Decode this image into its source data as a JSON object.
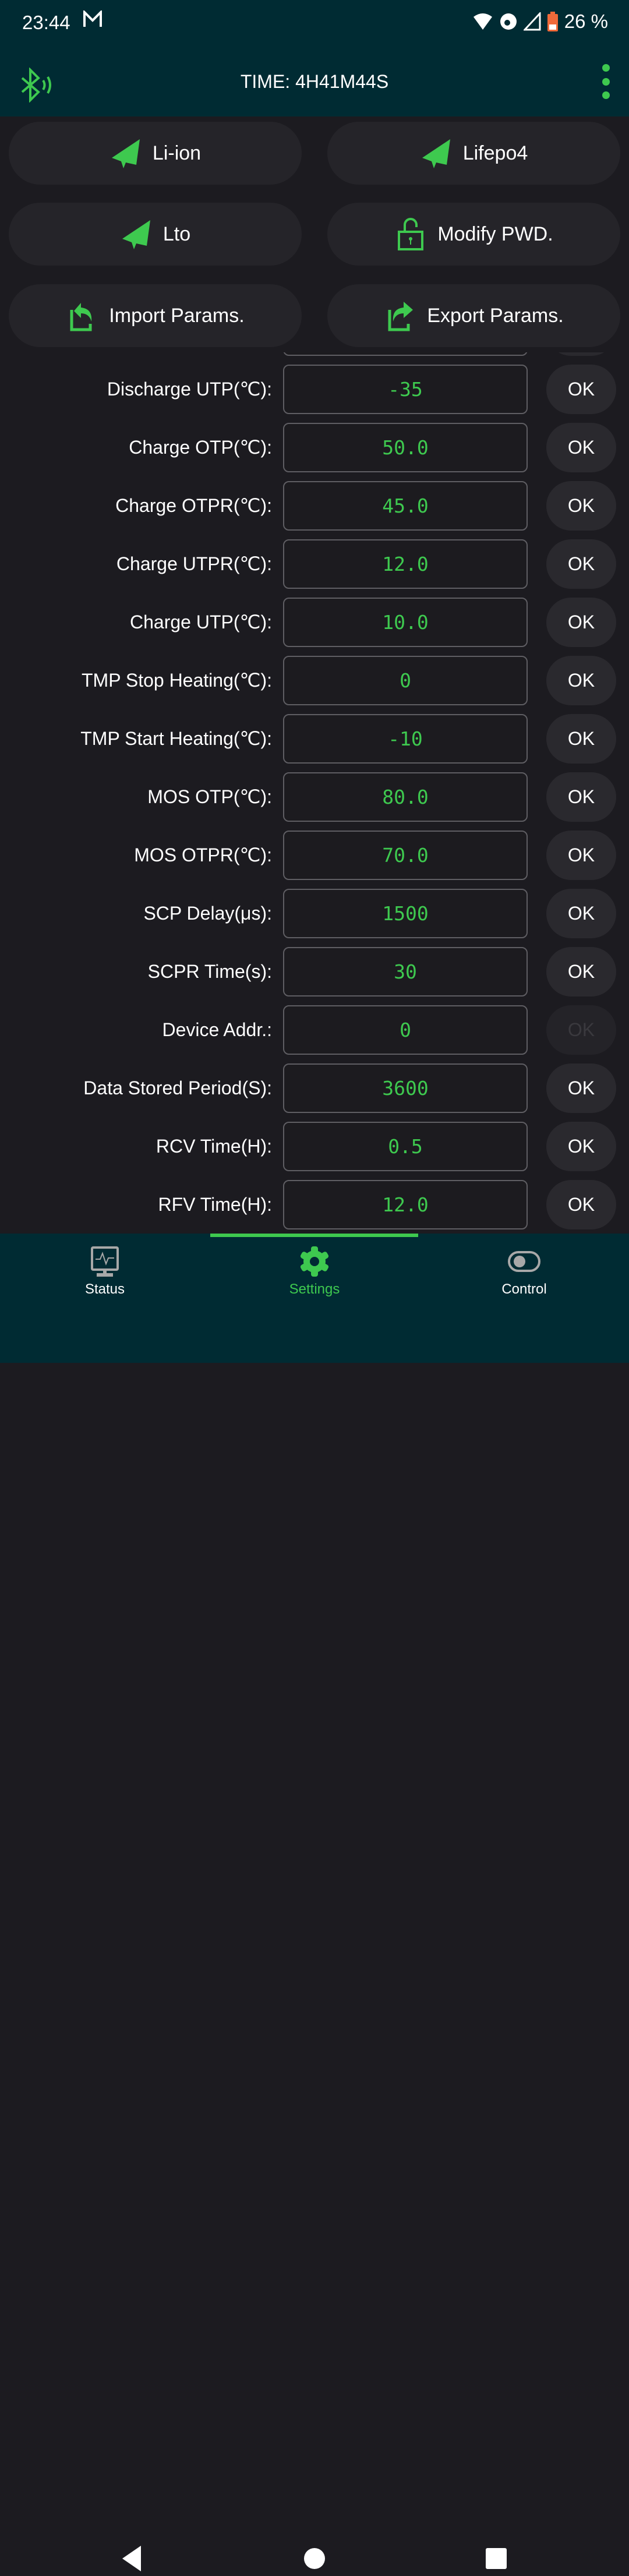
{
  "status_bar": {
    "time": "23:44",
    "notification_icon": "gmail-icon",
    "battery": "26 %",
    "icons": [
      "wifi-icon",
      "hotspot-icon",
      "signal-icon",
      "battery-icon"
    ]
  },
  "app_bar": {
    "title": "TIME: 4H41M44S",
    "left_icon": "bluetooth-connected-icon",
    "right_icon": "more-vert-icon"
  },
  "colors": {
    "accent": "#3ec94f",
    "header_bg": "#002b33",
    "page_bg": "#1c1b20",
    "button_bg": "#252429"
  },
  "actions": [
    {
      "label": "Li-ion",
      "icon": "send-icon"
    },
    {
      "label": "Lifepo4",
      "icon": "send-icon"
    },
    {
      "label": "Lto",
      "icon": "send-icon"
    },
    {
      "label": "Modify PWD.",
      "icon": "unlock-icon"
    },
    {
      "label": "Import Params.",
      "icon": "import-icon"
    },
    {
      "label": "Export Params.",
      "icon": "export-icon"
    }
  ],
  "params": [
    {
      "label": "",
      "value": "",
      "ok": "OK",
      "enabled": true
    },
    {
      "label": "Discharge UTP(℃):",
      "value": "-35",
      "ok": "OK",
      "enabled": true
    },
    {
      "label": "Charge OTP(℃):",
      "value": "50.0",
      "ok": "OK",
      "enabled": true
    },
    {
      "label": "Charge OTPR(℃):",
      "value": "45.0",
      "ok": "OK",
      "enabled": true
    },
    {
      "label": "Charge UTPR(℃):",
      "value": "12.0",
      "ok": "OK",
      "enabled": true
    },
    {
      "label": "Charge UTP(℃):",
      "value": "10.0",
      "ok": "OK",
      "enabled": true
    },
    {
      "label": "TMP Stop Heating(℃):",
      "value": "0",
      "ok": "OK",
      "enabled": true
    },
    {
      "label": "TMP Start Heating(℃):",
      "value": "-10",
      "ok": "OK",
      "enabled": true
    },
    {
      "label": "MOS OTP(℃):",
      "value": "80.0",
      "ok": "OK",
      "enabled": true
    },
    {
      "label": "MOS OTPR(℃):",
      "value": "70.0",
      "ok": "OK",
      "enabled": true
    },
    {
      "label": "SCP Delay(μs):",
      "value": "1500",
      "ok": "OK",
      "enabled": true
    },
    {
      "label": "SCPR Time(s):",
      "value": "30",
      "ok": "OK",
      "enabled": true
    },
    {
      "label": "Device Addr.:",
      "value": "0",
      "ok": "OK",
      "enabled": false
    },
    {
      "label": "Data Stored Period(S):",
      "value": "3600",
      "ok": "OK",
      "enabled": true
    },
    {
      "label": "RCV Time(H):",
      "value": "0.5",
      "ok": "OK",
      "enabled": true
    },
    {
      "label": "RFV Time(H):",
      "value": "12.0",
      "ok": "OK",
      "enabled": true
    }
  ],
  "bottom_nav": [
    {
      "label": "Status",
      "icon": "monitor-heartbeat-icon",
      "active": false
    },
    {
      "label": "Settings",
      "icon": "gear-icon",
      "active": true
    },
    {
      "label": "Control",
      "icon": "toggle-icon",
      "active": false
    }
  ]
}
